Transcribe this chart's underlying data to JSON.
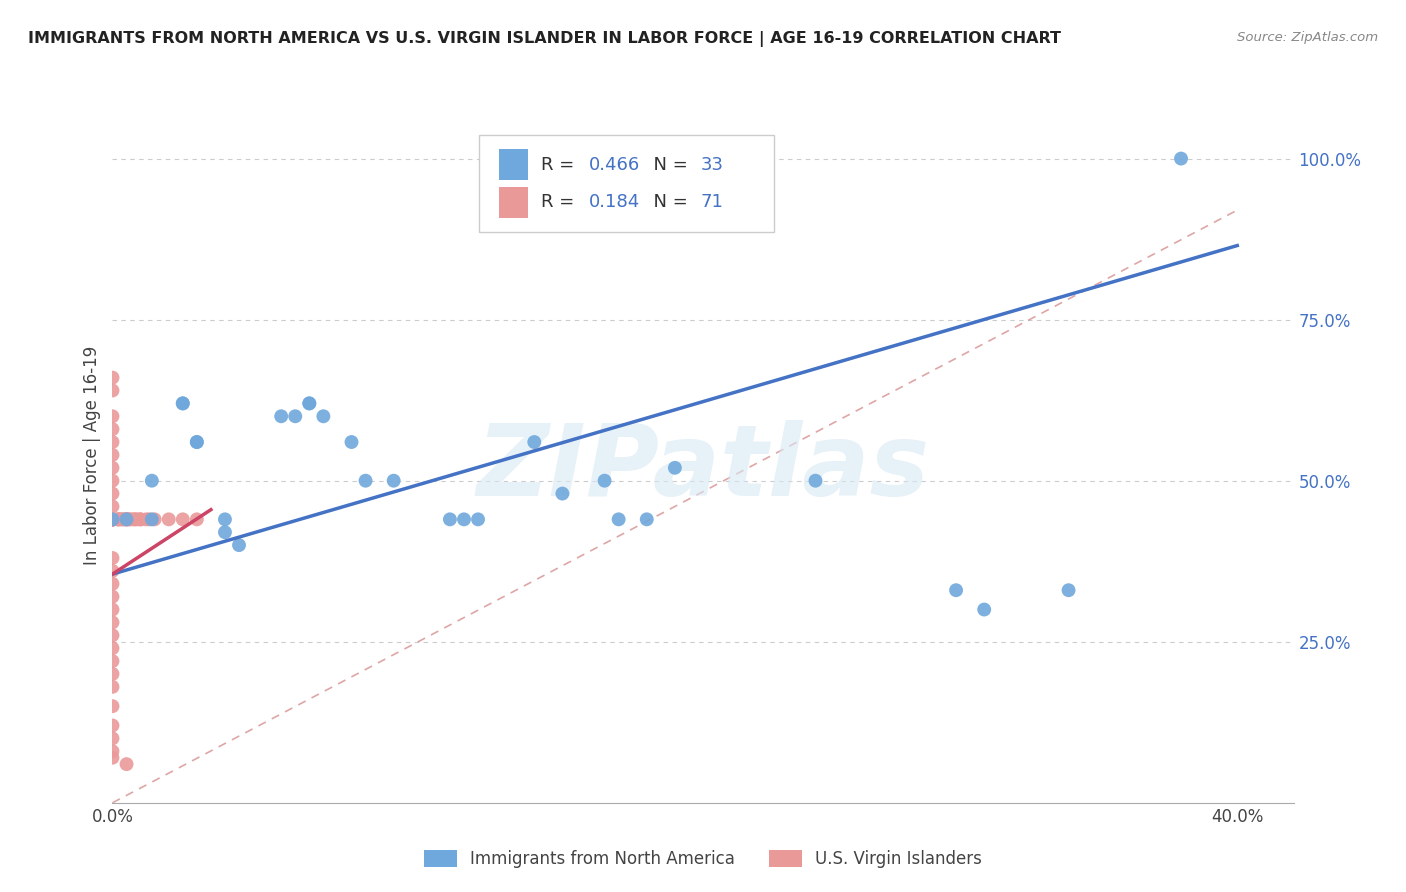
{
  "title": "IMMIGRANTS FROM NORTH AMERICA VS U.S. VIRGIN ISLANDER IN LABOR FORCE | AGE 16-19 CORRELATION CHART",
  "source": "Source: ZipAtlas.com",
  "ylabel": "In Labor Force | Age 16-19",
  "xlim": [
    0.0,
    0.42
  ],
  "ylim": [
    0.0,
    1.08
  ],
  "x_ticks": [
    0.0,
    0.1,
    0.2,
    0.3,
    0.4
  ],
  "x_tick_labels": [
    "0.0%",
    "",
    "",
    "",
    "40.0%"
  ],
  "y_ticks_right": [
    0.25,
    0.5,
    0.75,
    1.0
  ],
  "y_tick_labels_right": [
    "25.0%",
    "50.0%",
    "75.0%",
    "100.0%"
  ],
  "R_blue": "0.466",
  "N_blue": "33",
  "R_pink": "0.184",
  "N_pink": "71",
  "blue_color": "#6fa8dc",
  "pink_color": "#ea9999",
  "blue_line_color": "#4472c4",
  "pink_line_color": "#cc4466",
  "dashed_line_color": "#d08080",
  "watermark_text": "ZIPatlas",
  "legend_label_blue": "Immigrants from North America",
  "legend_label_pink": "U.S. Virgin Islanders",
  "blue_line_x": [
    0.0,
    0.4
  ],
  "blue_line_y": [
    0.355,
    0.865
  ],
  "pink_line_x": [
    0.0,
    0.035
  ],
  "pink_line_y": [
    0.355,
    0.455
  ],
  "dashed_line_x": [
    0.0,
    0.4
  ],
  "dashed_line_y": [
    0.0,
    0.92
  ],
  "blue_scatter": [
    [
      0.0,
      0.44
    ],
    [
      0.005,
      0.44
    ],
    [
      0.014,
      0.44
    ],
    [
      0.014,
      0.5
    ],
    [
      0.025,
      0.62
    ],
    [
      0.025,
      0.62
    ],
    [
      0.03,
      0.56
    ],
    [
      0.03,
      0.56
    ],
    [
      0.04,
      0.42
    ],
    [
      0.04,
      0.44
    ],
    [
      0.045,
      0.4
    ],
    [
      0.06,
      0.6
    ],
    [
      0.065,
      0.6
    ],
    [
      0.07,
      0.62
    ],
    [
      0.07,
      0.62
    ],
    [
      0.075,
      0.6
    ],
    [
      0.085,
      0.56
    ],
    [
      0.09,
      0.5
    ],
    [
      0.1,
      0.5
    ],
    [
      0.12,
      0.44
    ],
    [
      0.125,
      0.44
    ],
    [
      0.13,
      0.44
    ],
    [
      0.15,
      0.56
    ],
    [
      0.16,
      0.48
    ],
    [
      0.175,
      0.5
    ],
    [
      0.18,
      0.44
    ],
    [
      0.19,
      0.44
    ],
    [
      0.2,
      0.52
    ],
    [
      0.25,
      0.5
    ],
    [
      0.3,
      0.33
    ],
    [
      0.31,
      0.3
    ],
    [
      0.34,
      0.33
    ],
    [
      0.38,
      1.0
    ]
  ],
  "pink_scatter": [
    [
      0.0,
      0.44
    ],
    [
      0.0,
      0.44
    ],
    [
      0.0,
      0.44
    ],
    [
      0.0,
      0.44
    ],
    [
      0.0,
      0.44
    ],
    [
      0.0,
      0.44
    ],
    [
      0.0,
      0.44
    ],
    [
      0.0,
      0.44
    ],
    [
      0.0,
      0.44
    ],
    [
      0.0,
      0.44
    ],
    [
      0.0,
      0.44
    ],
    [
      0.0,
      0.44
    ],
    [
      0.0,
      0.44
    ],
    [
      0.0,
      0.44
    ],
    [
      0.0,
      0.44
    ],
    [
      0.0,
      0.44
    ],
    [
      0.0,
      0.44
    ],
    [
      0.0,
      0.44
    ],
    [
      0.0,
      0.44
    ],
    [
      0.0,
      0.44
    ],
    [
      0.0,
      0.66
    ],
    [
      0.0,
      0.64
    ],
    [
      0.0,
      0.6
    ],
    [
      0.0,
      0.58
    ],
    [
      0.0,
      0.56
    ],
    [
      0.0,
      0.54
    ],
    [
      0.0,
      0.52
    ],
    [
      0.0,
      0.5
    ],
    [
      0.0,
      0.48
    ],
    [
      0.0,
      0.46
    ],
    [
      0.0,
      0.38
    ],
    [
      0.0,
      0.36
    ],
    [
      0.0,
      0.34
    ],
    [
      0.0,
      0.32
    ],
    [
      0.0,
      0.3
    ],
    [
      0.0,
      0.28
    ],
    [
      0.0,
      0.26
    ],
    [
      0.0,
      0.24
    ],
    [
      0.0,
      0.22
    ],
    [
      0.0,
      0.2
    ],
    [
      0.0,
      0.18
    ],
    [
      0.0,
      0.15
    ],
    [
      0.0,
      0.12
    ],
    [
      0.0,
      0.1
    ],
    [
      0.0,
      0.08
    ],
    [
      0.0,
      0.07
    ],
    [
      0.002,
      0.44
    ],
    [
      0.002,
      0.44
    ],
    [
      0.002,
      0.44
    ],
    [
      0.003,
      0.44
    ],
    [
      0.003,
      0.44
    ],
    [
      0.004,
      0.44
    ],
    [
      0.004,
      0.44
    ],
    [
      0.005,
      0.44
    ],
    [
      0.005,
      0.44
    ],
    [
      0.005,
      0.44
    ],
    [
      0.005,
      0.06
    ],
    [
      0.006,
      0.44
    ],
    [
      0.006,
      0.44
    ],
    [
      0.007,
      0.44
    ],
    [
      0.008,
      0.44
    ],
    [
      0.008,
      0.44
    ],
    [
      0.009,
      0.44
    ],
    [
      0.01,
      0.44
    ],
    [
      0.01,
      0.44
    ],
    [
      0.012,
      0.44
    ],
    [
      0.013,
      0.44
    ],
    [
      0.015,
      0.44
    ],
    [
      0.02,
      0.44
    ],
    [
      0.025,
      0.44
    ],
    [
      0.03,
      0.44
    ]
  ]
}
